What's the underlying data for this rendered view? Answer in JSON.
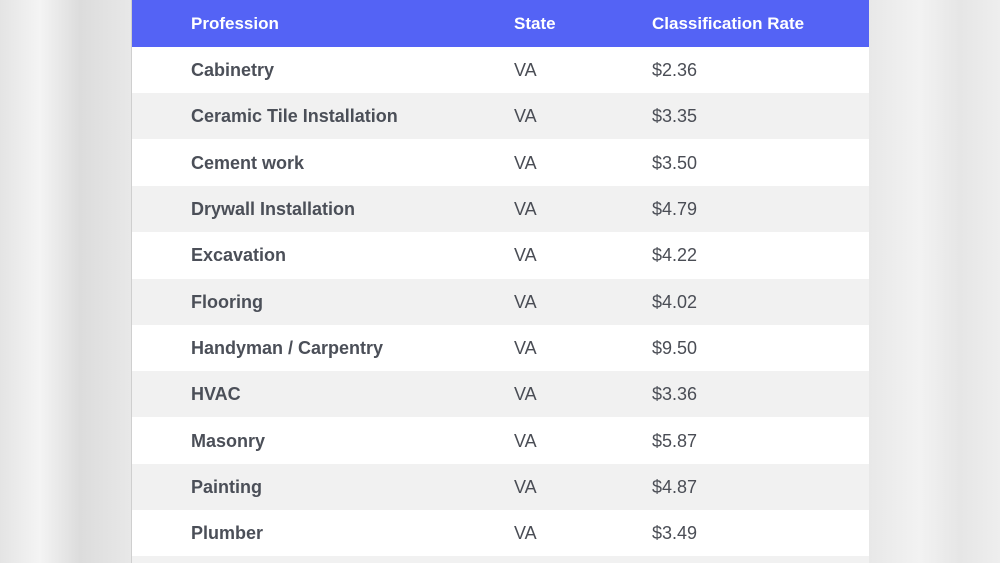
{
  "table": {
    "headers": {
      "profession": "Profession",
      "state": "State",
      "rate": "Classification Rate"
    },
    "rows": [
      {
        "profession": "Cabinetry",
        "state": "VA",
        "rate": "$2.36"
      },
      {
        "profession": "Ceramic Tile Installation",
        "state": "VA",
        "rate": "$3.35"
      },
      {
        "profession": "Cement work",
        "state": "VA",
        "rate": "$3.50"
      },
      {
        "profession": "Drywall Installation",
        "state": "VA",
        "rate": "$4.79"
      },
      {
        "profession": "Excavation",
        "state": "VA",
        "rate": "$4.22"
      },
      {
        "profession": "Flooring",
        "state": "VA",
        "rate": "$4.02"
      },
      {
        "profession": "Handyman / Carpentry",
        "state": "VA",
        "rate": "$9.50"
      },
      {
        "profession": "HVAC",
        "state": "VA",
        "rate": "$3.36"
      },
      {
        "profession": "Masonry",
        "state": "VA",
        "rate": "$5.87"
      },
      {
        "profession": "Painting",
        "state": "VA",
        "rate": "$4.87"
      },
      {
        "profession": "Plumber",
        "state": "VA",
        "rate": "$3.49"
      }
    ]
  },
  "colors": {
    "header_bg": "#5463f5",
    "row_alt_bg": "#f1f1f1",
    "row_bg": "#ffffff",
    "text": "#4a4d55"
  }
}
